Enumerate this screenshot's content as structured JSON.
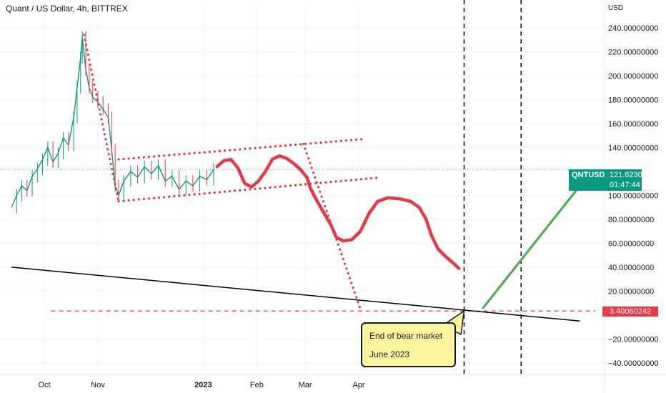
{
  "header": {
    "title": "Quant / US Dollar, 4h, BITTREX",
    "currency": "USD"
  },
  "price_label": {
    "symbol": "QNTUSD",
    "value": "121.62300000",
    "countdown": "01:47:44",
    "color": "#089981"
  },
  "level_label": {
    "value": "3.40060242",
    "color": "#f23645"
  },
  "annotation": {
    "line1": "End of bear market",
    "line2": "June 2023"
  },
  "chart_data": {
    "type": "line",
    "title": "Quant / US Dollar, 4h, BITTREX",
    "ylabel": "USD",
    "ylim": [
      -45,
      262
    ],
    "yticks": [
      {
        "value": 240,
        "label": "240.00000000"
      },
      {
        "value": 220,
        "label": "220.00000000"
      },
      {
        "value": 200,
        "label": "200.00000000"
      },
      {
        "value": 180,
        "label": "180.00000000"
      },
      {
        "value": 160,
        "label": "160.00000000"
      },
      {
        "value": 140,
        "label": "140.00000000"
      },
      {
        "value": 100,
        "label": "100.00000000"
      },
      {
        "value": 80,
        "label": "80.00000000"
      },
      {
        "value": 60,
        "label": "60.00000000"
      },
      {
        "value": 40,
        "label": "40.00000000"
      },
      {
        "value": 20,
        "label": "20.00000000"
      },
      {
        "value": -20,
        "label": "−20.00000000"
      },
      {
        "value": -40,
        "label": "−40.00000000"
      }
    ],
    "xticks": [
      {
        "date": "2022-10-01",
        "label": "Oct"
      },
      {
        "date": "2022-11-01",
        "label": "Nov"
      },
      {
        "date": "2023-01-01",
        "label": "2023"
      },
      {
        "date": "2023-02-01",
        "label": "Feb"
      },
      {
        "date": "2023-03-01",
        "label": "Mar"
      },
      {
        "date": "2023-04-01",
        "label": "Apr"
      }
    ],
    "current_price": 121.623,
    "target_level": 3.40060242,
    "series": [
      {
        "kind": "price",
        "color": "#089981",
        "points": [
          [
            "2022-09-12",
            90
          ],
          [
            "2022-09-15",
            100
          ],
          [
            "2022-09-18",
            108
          ],
          [
            "2022-09-21",
            104
          ],
          [
            "2022-09-24",
            116
          ],
          [
            "2022-09-27",
            122
          ],
          [
            "2022-09-30",
            130
          ],
          [
            "2022-10-03",
            140
          ],
          [
            "2022-10-06",
            128
          ],
          [
            "2022-10-09",
            135
          ],
          [
            "2022-10-12",
            148
          ],
          [
            "2022-10-15",
            142
          ],
          [
            "2022-10-18",
            165
          ],
          [
            "2022-10-20",
            190
          ],
          [
            "2022-10-22",
            215
          ],
          [
            "2022-10-23",
            232
          ],
          [
            "2022-10-25",
            205
          ],
          [
            "2022-10-27",
            190
          ],
          [
            "2022-10-29",
            182
          ],
          [
            "2022-11-01",
            178
          ],
          [
            "2022-11-04",
            172
          ],
          [
            "2022-11-07",
            165
          ],
          [
            "2022-11-09",
            138
          ],
          [
            "2022-11-11",
            108
          ],
          [
            "2022-11-13",
            100
          ],
          [
            "2022-11-16",
            112
          ],
          [
            "2022-11-20",
            120
          ],
          [
            "2022-11-24",
            115
          ],
          [
            "2022-11-28",
            124
          ],
          [
            "2022-12-02",
            118
          ],
          [
            "2022-12-06",
            125
          ],
          [
            "2022-12-10",
            112
          ],
          [
            "2022-12-14",
            116
          ],
          [
            "2022-12-18",
            105
          ],
          [
            "2022-12-22",
            112
          ],
          [
            "2022-12-26",
            108
          ],
          [
            "2022-12-30",
            116
          ],
          [
            "2023-01-03",
            113
          ],
          [
            "2023-01-07",
            121.6
          ]
        ]
      },
      {
        "kind": "projection",
        "color": "#e53946",
        "points": [
          [
            "2023-01-09",
            124
          ],
          [
            "2023-01-13",
            129
          ],
          [
            "2023-01-17",
            130
          ],
          [
            "2023-01-21",
            123
          ],
          [
            "2023-01-25",
            110
          ],
          [
            "2023-01-29",
            107
          ],
          [
            "2023-02-02",
            112
          ],
          [
            "2023-02-06",
            120
          ],
          [
            "2023-02-10",
            130
          ],
          [
            "2023-02-14",
            133
          ],
          [
            "2023-02-18",
            131
          ],
          [
            "2023-02-22",
            127
          ],
          [
            "2023-02-26",
            122
          ],
          [
            "2023-03-02",
            115
          ],
          [
            "2023-03-04",
            106
          ],
          [
            "2023-03-08",
            95
          ],
          [
            "2023-03-12",
            85
          ],
          [
            "2023-03-16",
            75
          ],
          [
            "2023-03-19",
            65
          ],
          [
            "2023-03-23",
            62
          ],
          [
            "2023-03-28",
            63
          ],
          [
            "2023-04-02",
            70
          ],
          [
            "2023-04-07",
            85
          ],
          [
            "2023-04-12",
            95
          ],
          [
            "2023-04-18",
            98
          ],
          [
            "2023-04-25",
            97
          ],
          [
            "2023-05-01",
            95
          ],
          [
            "2023-05-06",
            90
          ],
          [
            "2023-05-10",
            80
          ],
          [
            "2023-05-13",
            67
          ],
          [
            "2023-05-17",
            55
          ],
          [
            "2023-05-22",
            48
          ],
          [
            "2023-05-26",
            43
          ],
          [
            "2023-05-29",
            39
          ]
        ]
      },
      {
        "kind": "recovery",
        "color": "#4caf50",
        "points": [
          [
            "2023-06-12",
            6
          ],
          [
            "2023-08-07",
            108
          ]
        ]
      },
      {
        "kind": "trendline",
        "color": "#000000",
        "points": [
          [
            "2022-09-12",
            40
          ],
          [
            "2023-08-07",
            -5
          ]
        ]
      }
    ],
    "drawings": {
      "color": "#e53946",
      "dotted_lines": [
        [
          [
            "2022-10-24",
            234
          ],
          [
            "2022-11-13",
            95
          ]
        ],
        [
          [
            "2022-11-13",
            130
          ],
          [
            "2023-04-04",
            147
          ]
        ],
        [
          [
            "2022-11-13",
            95
          ],
          [
            "2023-04-14",
            115
          ]
        ],
        [
          [
            "2023-02-28",
            143
          ],
          [
            "2023-04-02",
            5
          ]
        ]
      ],
      "dashed_level": [
        [
          "2022-10-05",
          3.40060242
        ],
        [
          "2023-08-16",
          3.40060242
        ]
      ],
      "vertical_dashed_dates": [
        "2023-06-01",
        "2023-07-04"
      ],
      "vertical_color": "#000000"
    }
  }
}
